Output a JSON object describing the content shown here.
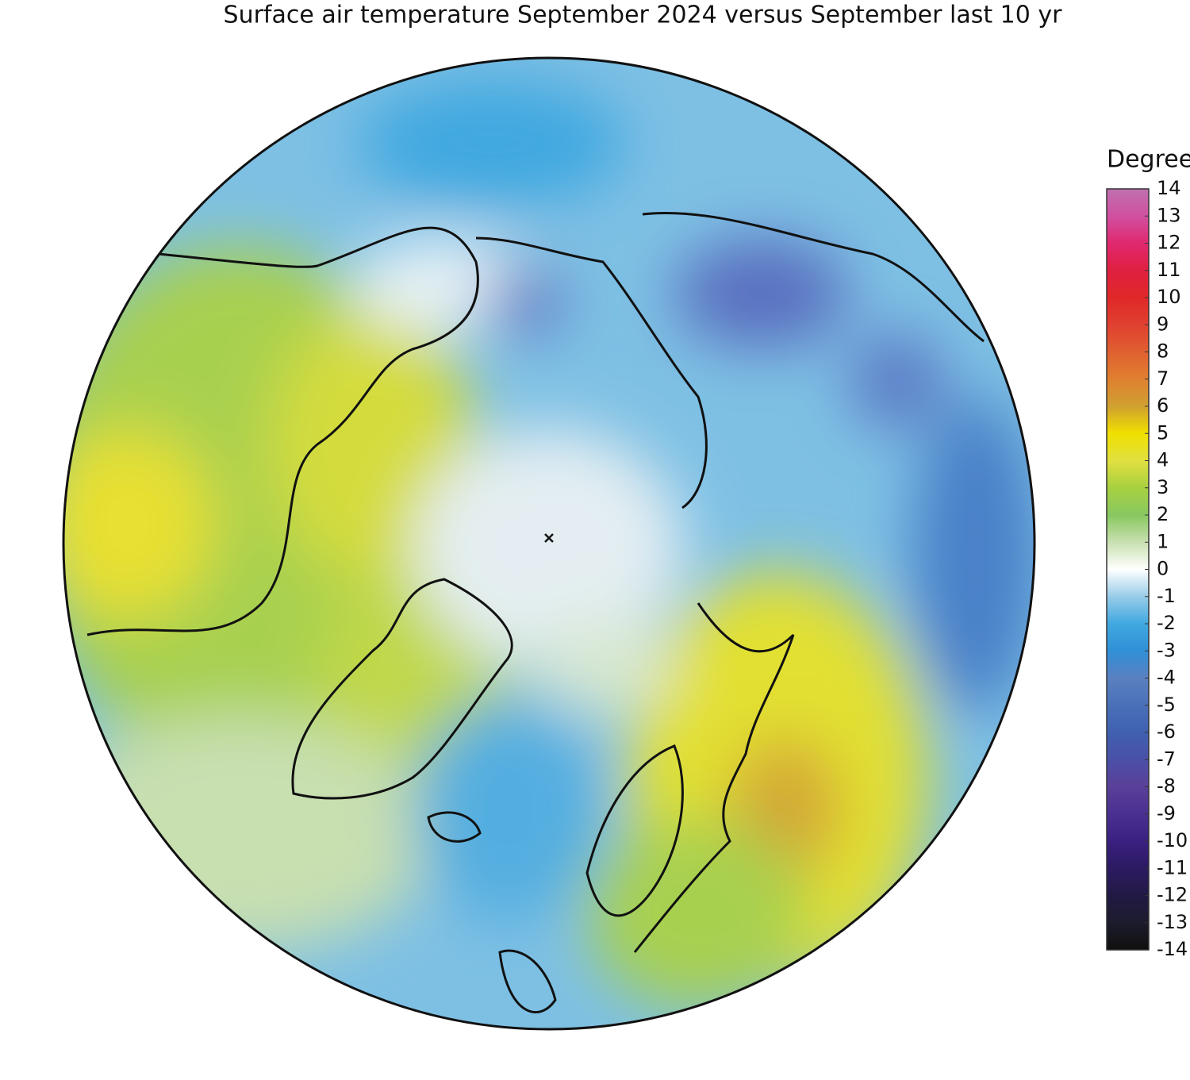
{
  "title": "Surface air temperature September 2024 versus September last 10 yr",
  "colorbar": {
    "label": "Degrees C",
    "lim": [
      -14,
      14
    ],
    "ticks": [
      -14,
      -13,
      -12,
      -11,
      -10,
      -9,
      -8,
      -7,
      -6,
      -5,
      -4,
      -3,
      -2,
      -1,
      0,
      1,
      2,
      3,
      4,
      5,
      6,
      7,
      8,
      9,
      10,
      11,
      12,
      13,
      14
    ],
    "colors": [
      "#101010",
      "#1c1c2c",
      "#221a44",
      "#2c1a62",
      "#3a2080",
      "#4a3090",
      "#5a4098",
      "#4a50a8",
      "#4060b0",
      "#4a70b8",
      "#5a80c0",
      "#3090d8",
      "#40a8e0",
      "#98cce8",
      "#ffffff",
      "#c8e0b0",
      "#88c860",
      "#a8d040",
      "#e0e040",
      "#f0e000",
      "#d0a030",
      "#e08030",
      "#e06030",
      "#e04030",
      "#e02828",
      "#e02040",
      "#e02870",
      "#d050a0",
      "#c070b0"
    ]
  }
}
